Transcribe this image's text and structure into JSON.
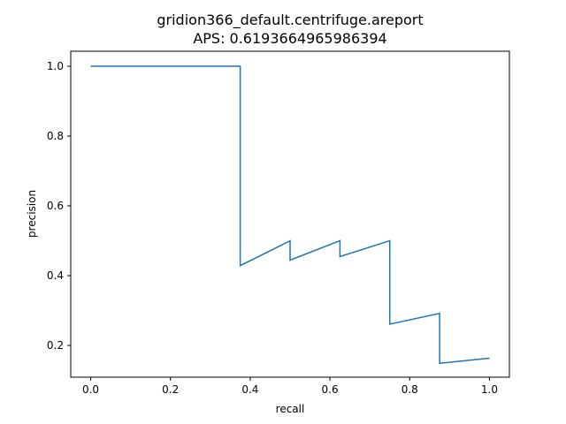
{
  "chart_data": {
    "type": "line",
    "title": "gridion366_default.centrifuge.areport",
    "subtitle": "APS: 0.6193664965986394",
    "xlabel": "recall",
    "ylabel": "precision",
    "xlim": [
      -0.05,
      1.05
    ],
    "ylim": [
      0.109,
      1.043
    ],
    "xticks": [
      0.0,
      0.2,
      0.4,
      0.6,
      0.8,
      1.0
    ],
    "xtick_labels": [
      "0.0",
      "0.2",
      "0.4",
      "0.6",
      "0.8",
      "1.0"
    ],
    "yticks": [
      0.2,
      0.4,
      0.6,
      0.8,
      1.0
    ],
    "ytick_labels": [
      "0.2",
      "0.4",
      "0.6",
      "0.8",
      "1.0"
    ],
    "grid": false,
    "line_color": "#1f77b4",
    "series": [
      {
        "x": [
          0.0,
          0.375,
          0.375,
          0.5,
          0.5,
          0.625,
          0.625,
          0.75,
          0.75,
          0.875,
          0.875,
          1.0
        ],
        "y": [
          1.0,
          1.0,
          0.4286,
          0.5,
          0.4444,
          0.5,
          0.4545,
          0.5,
          0.2609,
          0.2917,
          0.1489,
          0.1633
        ]
      }
    ]
  }
}
